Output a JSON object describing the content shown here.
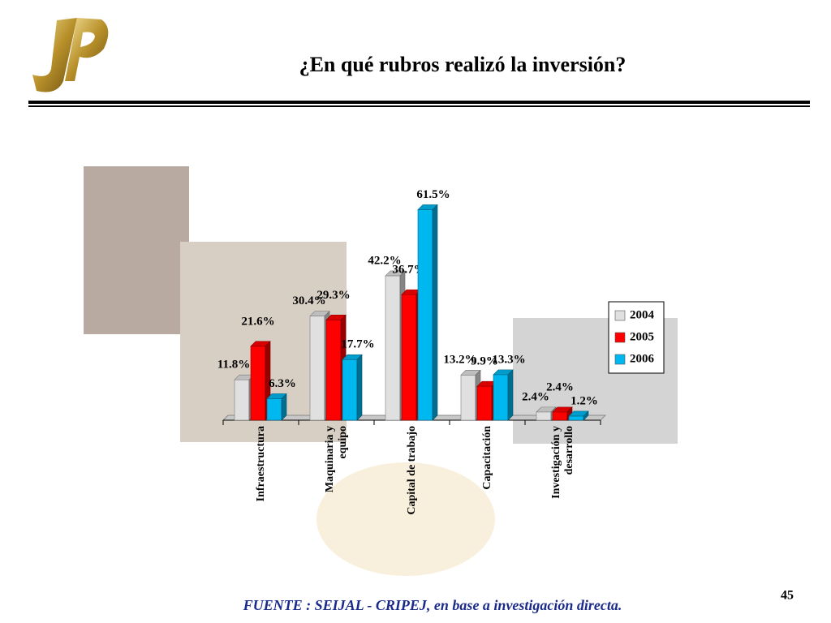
{
  "chart_data": {
    "type": "bar",
    "title": "¿En qué rubros realizó la inversión?",
    "categories": [
      "Infraestructura",
      "Maquinaria y equipo",
      "Capital de trabajo",
      "Capacitación",
      "Investigación y desarrollo"
    ],
    "series": [
      {
        "name": "2004",
        "color": "#e0e0e0",
        "values": [
          11.8,
          30.4,
          42.2,
          13.2,
          2.4
        ],
        "value_labels": [
          "11.8%",
          "30.4%",
          "42.2%",
          "13.2%",
          "2.4%"
        ]
      },
      {
        "name": "2005",
        "color": "#ff0000",
        "values": [
          21.6,
          29.3,
          36.7,
          9.9,
          2.4
        ],
        "value_labels": [
          "21.6%",
          "29.3%",
          "36.7%",
          "9.9%",
          "2.4%"
        ]
      },
      {
        "name": "2006",
        "color": "#00b8f0",
        "values": [
          6.3,
          17.7,
          61.5,
          13.3,
          1.2
        ],
        "value_labels": [
          "6.3%",
          "17.7%",
          "61.5%",
          "13.3%",
          "1.2%"
        ]
      }
    ],
    "legend": "right",
    "source": "FUENTE :  SEIJAL - CRIPEJ,  en base a investigación directa.",
    "page_number": "45"
  }
}
